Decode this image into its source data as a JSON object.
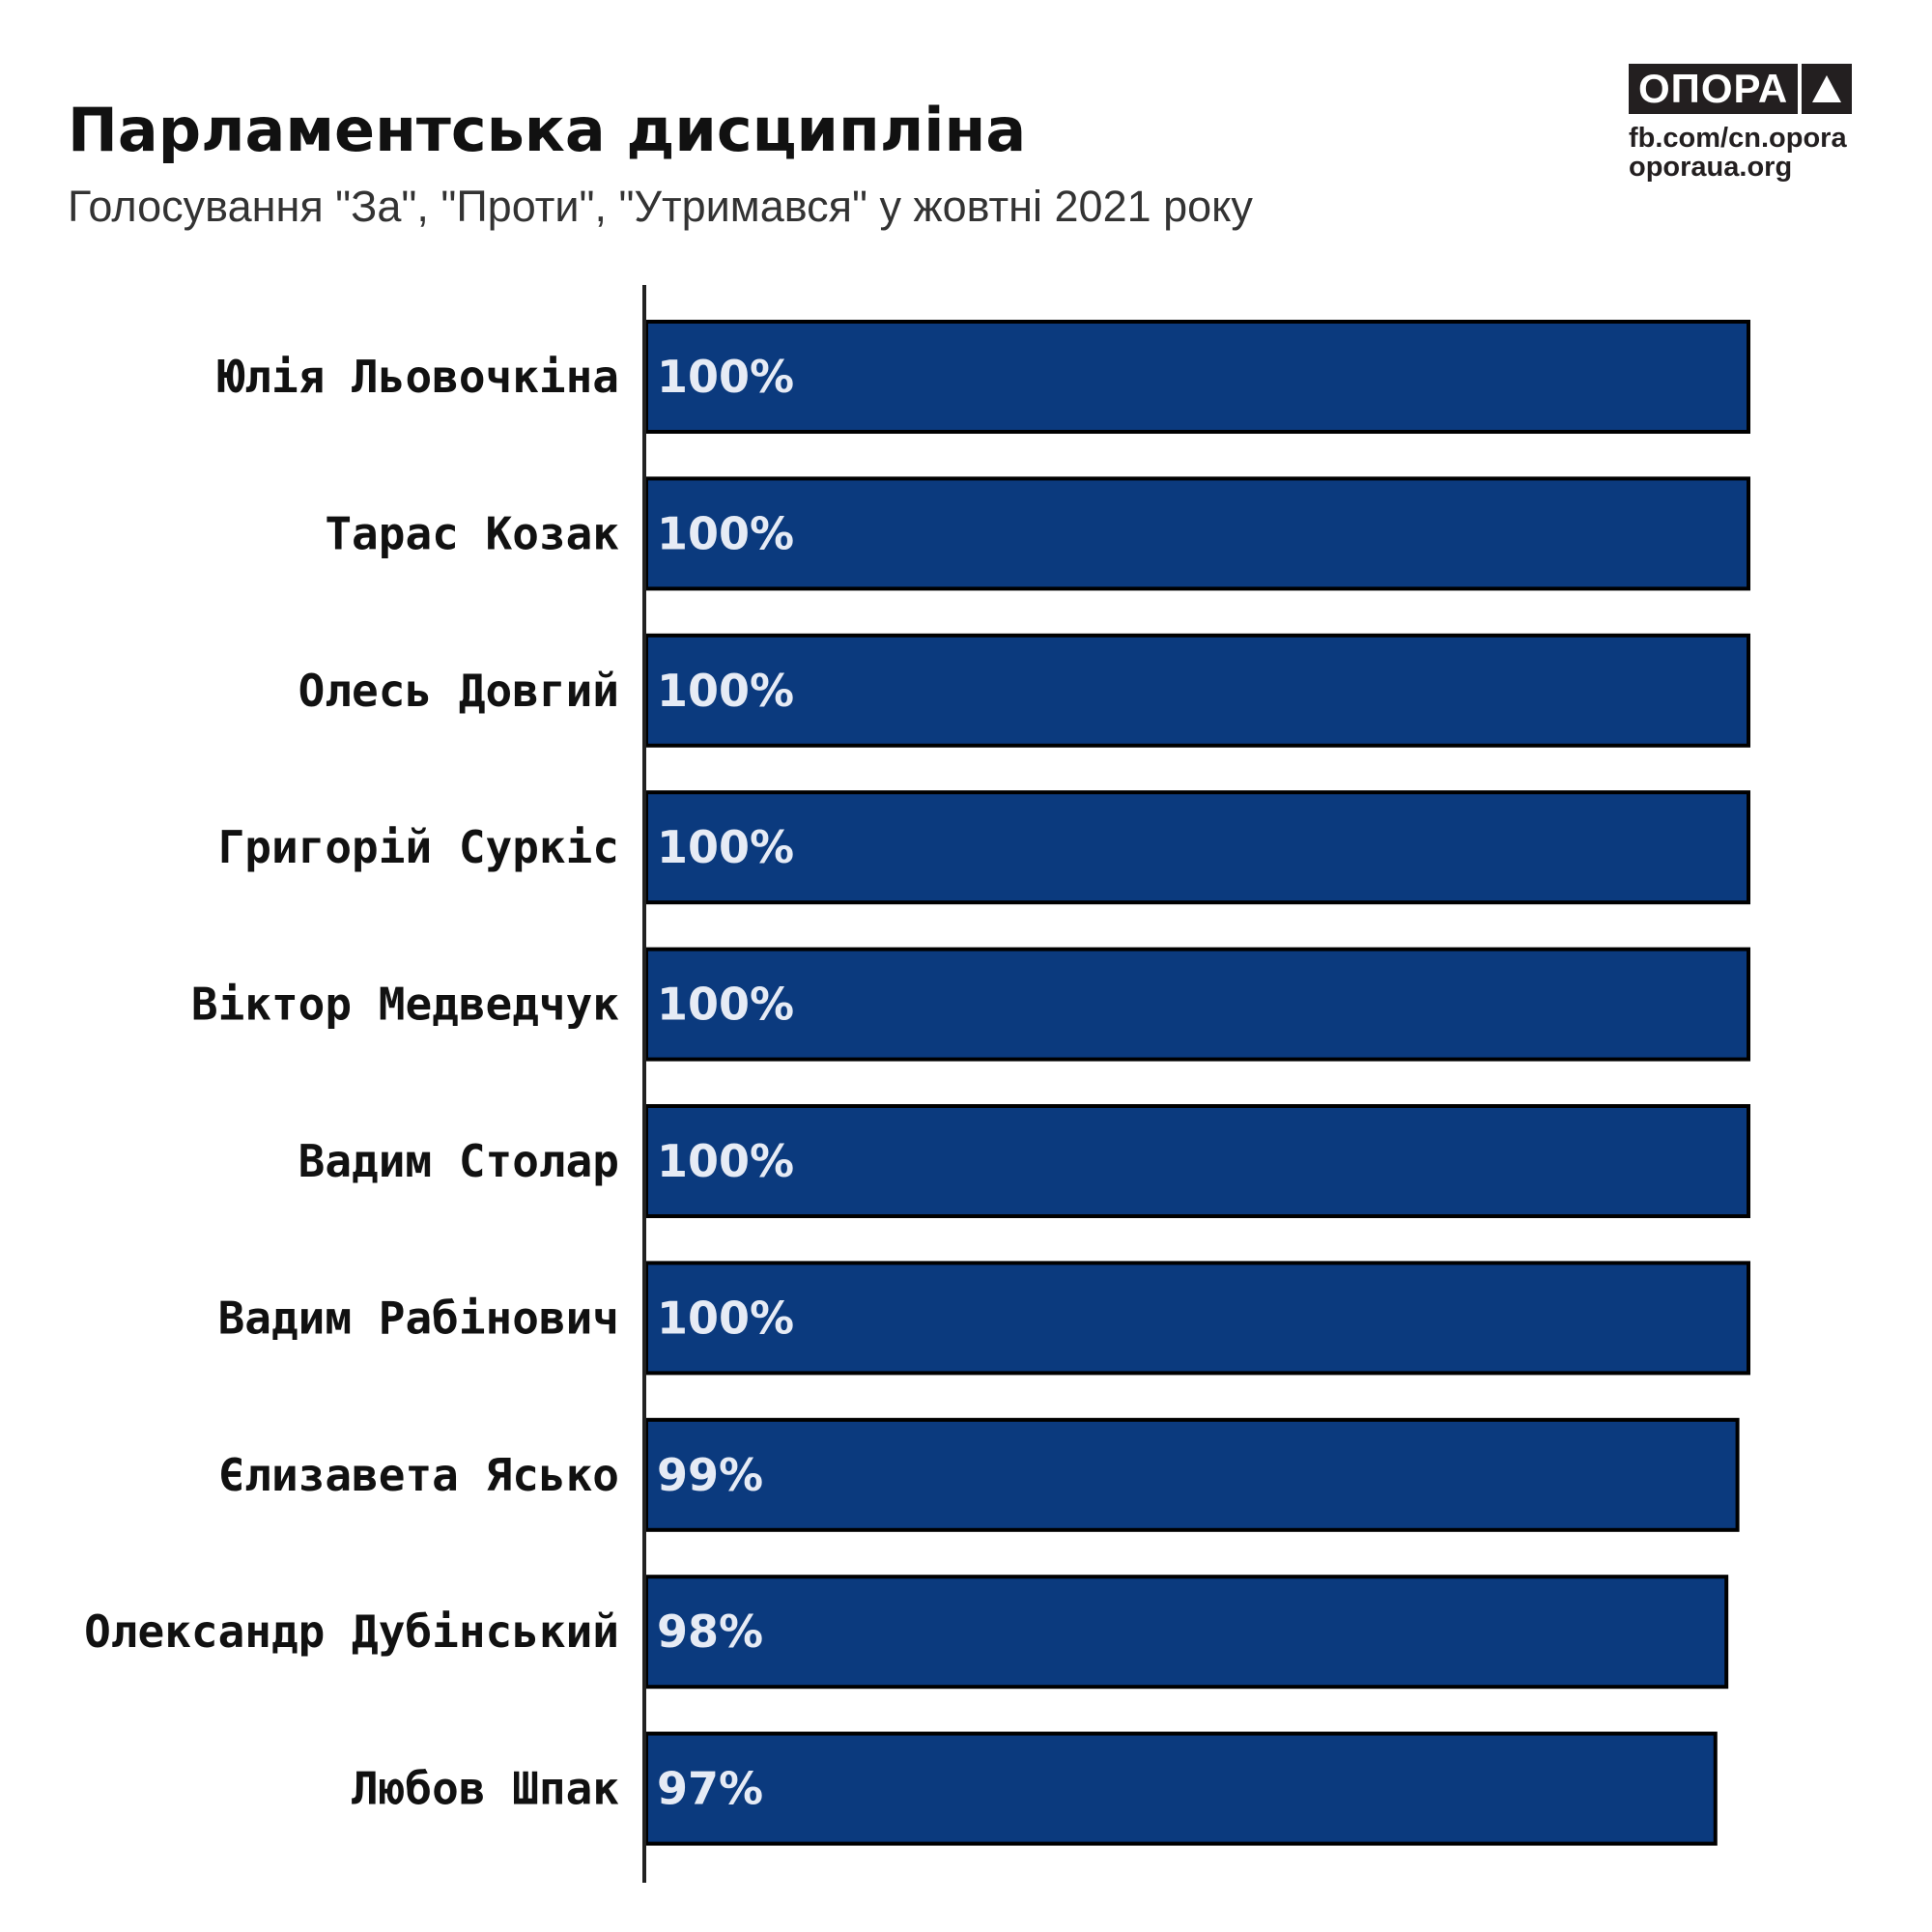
{
  "header": {
    "title": "Парламентська дисципліна",
    "subtitle": "Голосування \"За\", \"Проти\", \"Утримався\" у жовтні 2021 року"
  },
  "logo": {
    "name": "ОПОРА",
    "links": [
      "fb.com/cn.opora",
      "oporaua.org"
    ]
  },
  "colors": {
    "bar": "#0b3a7e",
    "bar_stroke": "#000000",
    "value_text": "#e6ebf5",
    "axis": "#222222"
  },
  "chart_data": {
    "type": "bar",
    "orientation": "horizontal",
    "title": "Парламентська дисципліна",
    "subtitle": "Голосування \"За\", \"Проти\", \"Утримався\" у жовтні 2021 року",
    "categories": [
      "Юлія Льовочкіна",
      "Тарас Козак",
      "Олесь Довгий",
      "Григорій Суркіс",
      "Віктор Медведчук",
      "Вадим Столар",
      "Вадим Рабінович",
      "Єлизавета Ясько",
      "Олександр Дубінський",
      "Любов Шпак"
    ],
    "values": [
      100,
      100,
      100,
      100,
      100,
      100,
      100,
      99,
      98,
      97
    ],
    "value_labels": [
      "100%",
      "100%",
      "100%",
      "100%",
      "100%",
      "100%",
      "100%",
      "99%",
      "98%",
      "97%"
    ],
    "xlim": [
      0,
      100
    ],
    "grid": false,
    "xlabel": "",
    "ylabel": ""
  }
}
